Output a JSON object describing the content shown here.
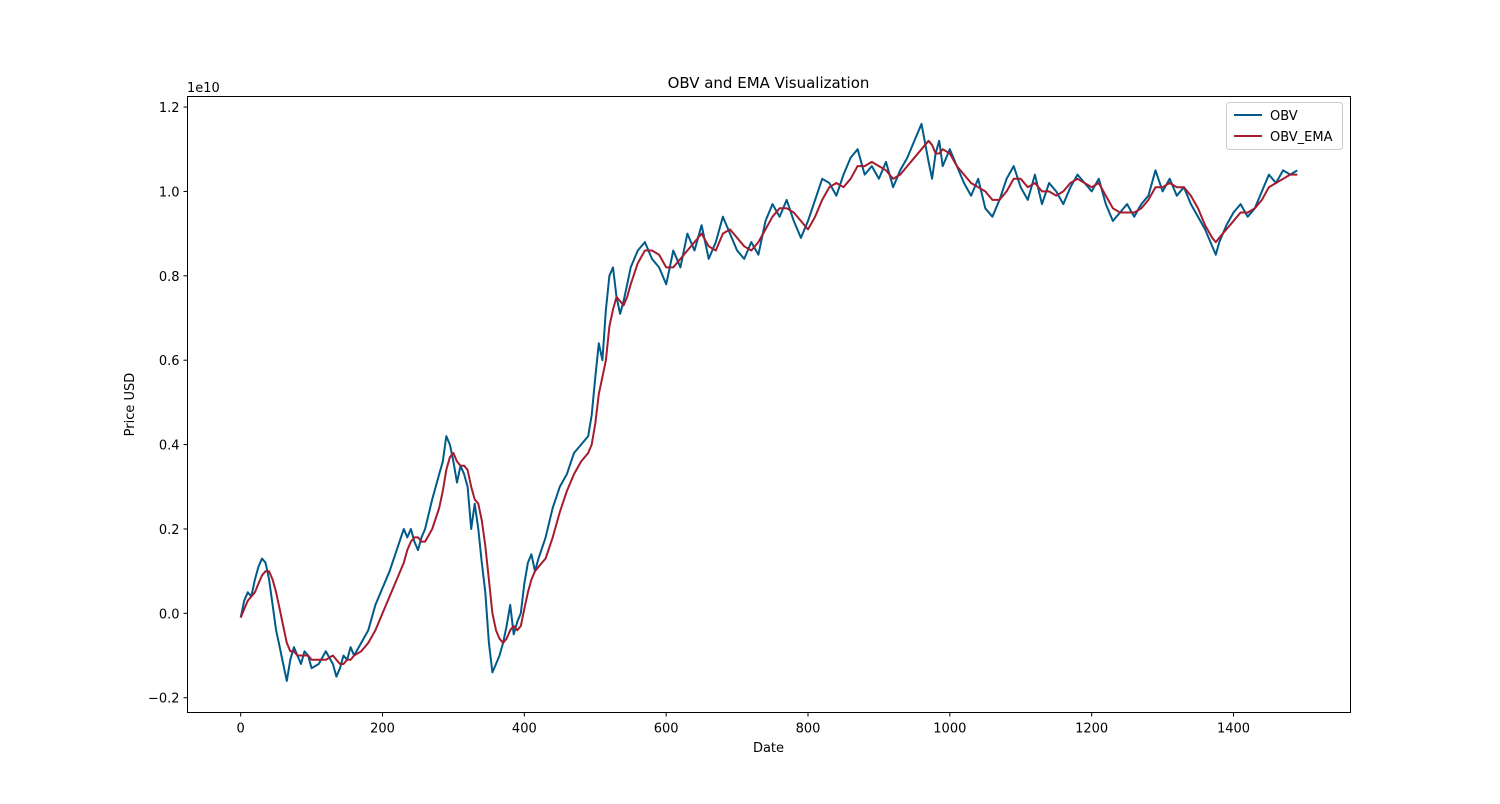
{
  "chart_data": {
    "type": "line",
    "title": "OBV and EMA Visualization",
    "xlabel": "Date",
    "ylabel": "Price USD",
    "y_scale_label": "1e10",
    "xlim": [
      -75,
      1565
    ],
    "ylim": [
      -0.235,
      1.225
    ],
    "x_ticks": [
      0,
      200,
      400,
      600,
      800,
      1000,
      1200,
      1400
    ],
    "y_ticks": [
      -0.2,
      0.0,
      0.2,
      0.4,
      0.6,
      0.8,
      1.0,
      1.2
    ],
    "x_tick_labels": [
      "0",
      "200",
      "400",
      "600",
      "800",
      "1000",
      "1200",
      "1400"
    ],
    "y_tick_labels": [
      "−0.2",
      "0.0",
      "0.2",
      "0.4",
      "0.6",
      "0.8",
      "1.0",
      "1.2"
    ],
    "grid": false,
    "legend_position": "top-right",
    "series": [
      {
        "name": "OBV",
        "color": "#005b8a",
        "x": [
          0,
          5,
          10,
          15,
          20,
          25,
          30,
          35,
          40,
          45,
          50,
          55,
          60,
          65,
          70,
          75,
          80,
          85,
          90,
          95,
          100,
          110,
          120,
          130,
          135,
          140,
          145,
          150,
          155,
          160,
          170,
          180,
          190,
          200,
          210,
          220,
          230,
          235,
          240,
          245,
          250,
          255,
          260,
          270,
          280,
          285,
          290,
          295,
          300,
          305,
          310,
          315,
          320,
          325,
          330,
          335,
          340,
          345,
          350,
          355,
          360,
          365,
          370,
          375,
          380,
          385,
          390,
          395,
          400,
          405,
          410,
          415,
          420,
          430,
          440,
          450,
          460,
          470,
          480,
          490,
          495,
          500,
          505,
          510,
          515,
          520,
          525,
          530,
          535,
          540,
          545,
          550,
          560,
          570,
          580,
          590,
          600,
          610,
          620,
          630,
          640,
          650,
          660,
          670,
          680,
          690,
          700,
          710,
          720,
          730,
          740,
          750,
          760,
          770,
          780,
          790,
          800,
          810,
          820,
          830,
          840,
          850,
          860,
          870,
          880,
          890,
          900,
          910,
          920,
          930,
          940,
          950,
          960,
          970,
          975,
          980,
          985,
          990,
          1000,
          1010,
          1020,
          1030,
          1040,
          1050,
          1060,
          1070,
          1080,
          1090,
          1100,
          1110,
          1120,
          1130,
          1140,
          1150,
          1160,
          1170,
          1180,
          1190,
          1200,
          1210,
          1220,
          1230,
          1240,
          1250,
          1260,
          1270,
          1280,
          1290,
          1300,
          1310,
          1320,
          1330,
          1340,
          1350,
          1360,
          1370,
          1375,
          1380,
          1390,
          1400,
          1410,
          1420,
          1430,
          1440,
          1450,
          1460,
          1470,
          1480,
          1490
        ],
        "values": [
          -0.01,
          0.03,
          0.05,
          0.04,
          0.08,
          0.11,
          0.13,
          0.12,
          0.08,
          0.02,
          -0.04,
          -0.08,
          -0.12,
          -0.16,
          -0.11,
          -0.08,
          -0.1,
          -0.12,
          -0.09,
          -0.1,
          -0.13,
          -0.12,
          -0.09,
          -0.12,
          -0.15,
          -0.13,
          -0.1,
          -0.11,
          -0.08,
          -0.1,
          -0.07,
          -0.04,
          0.02,
          0.06,
          0.1,
          0.15,
          0.2,
          0.18,
          0.2,
          0.17,
          0.15,
          0.18,
          0.2,
          0.27,
          0.33,
          0.36,
          0.42,
          0.4,
          0.36,
          0.31,
          0.35,
          0.33,
          0.3,
          0.2,
          0.26,
          0.2,
          0.12,
          0.05,
          -0.07,
          -0.14,
          -0.12,
          -0.1,
          -0.07,
          -0.03,
          0.02,
          -0.05,
          -0.02,
          0.0,
          0.07,
          0.12,
          0.14,
          0.1,
          0.13,
          0.18,
          0.25,
          0.3,
          0.33,
          0.38,
          0.4,
          0.42,
          0.47,
          0.56,
          0.64,
          0.6,
          0.72,
          0.8,
          0.82,
          0.75,
          0.71,
          0.74,
          0.78,
          0.82,
          0.86,
          0.88,
          0.84,
          0.82,
          0.78,
          0.86,
          0.82,
          0.9,
          0.86,
          0.92,
          0.84,
          0.88,
          0.94,
          0.9,
          0.86,
          0.84,
          0.88,
          0.85,
          0.93,
          0.97,
          0.94,
          0.98,
          0.93,
          0.89,
          0.93,
          0.98,
          1.03,
          1.02,
          0.99,
          1.04,
          1.08,
          1.1,
          1.04,
          1.06,
          1.03,
          1.07,
          1.01,
          1.05,
          1.08,
          1.12,
          1.16,
          1.07,
          1.03,
          1.09,
          1.12,
          1.06,
          1.1,
          1.06,
          1.02,
          0.99,
          1.03,
          0.96,
          0.94,
          0.98,
          1.03,
          1.06,
          1.01,
          0.98,
          1.04,
          0.97,
          1.02,
          1.0,
          0.97,
          1.01,
          1.04,
          1.02,
          1.0,
          1.03,
          0.97,
          0.93,
          0.95,
          0.97,
          0.94,
          0.97,
          0.99,
          1.05,
          1.0,
          1.03,
          0.99,
          1.01,
          0.97,
          0.94,
          0.91,
          0.87,
          0.85,
          0.88,
          0.92,
          0.95,
          0.97,
          0.94,
          0.96,
          1.0,
          1.04,
          1.02,
          1.05,
          1.04,
          1.05
        ]
      },
      {
        "name": "OBV_EMA",
        "color": "#a51c30",
        "x": [
          0,
          5,
          10,
          15,
          20,
          25,
          30,
          35,
          40,
          45,
          50,
          55,
          60,
          65,
          70,
          75,
          80,
          85,
          90,
          95,
          100,
          110,
          120,
          130,
          135,
          140,
          145,
          150,
          155,
          160,
          170,
          180,
          190,
          200,
          210,
          220,
          230,
          235,
          240,
          245,
          250,
          255,
          260,
          270,
          280,
          285,
          290,
          295,
          300,
          305,
          310,
          315,
          320,
          325,
          330,
          335,
          340,
          345,
          350,
          355,
          360,
          365,
          370,
          375,
          380,
          385,
          390,
          395,
          400,
          405,
          410,
          415,
          420,
          430,
          440,
          450,
          460,
          470,
          480,
          490,
          495,
          500,
          505,
          510,
          515,
          520,
          525,
          530,
          535,
          540,
          545,
          550,
          560,
          570,
          580,
          590,
          600,
          610,
          620,
          630,
          640,
          650,
          660,
          670,
          680,
          690,
          700,
          710,
          720,
          730,
          740,
          750,
          760,
          770,
          780,
          790,
          800,
          810,
          820,
          830,
          840,
          850,
          860,
          870,
          880,
          890,
          900,
          910,
          920,
          930,
          940,
          950,
          960,
          970,
          975,
          980,
          985,
          990,
          1000,
          1010,
          1020,
          1030,
          1040,
          1050,
          1060,
          1070,
          1080,
          1090,
          1100,
          1110,
          1120,
          1130,
          1140,
          1150,
          1160,
          1170,
          1180,
          1190,
          1200,
          1210,
          1220,
          1230,
          1240,
          1250,
          1260,
          1270,
          1280,
          1290,
          1300,
          1310,
          1320,
          1330,
          1340,
          1350,
          1360,
          1370,
          1375,
          1380,
          1390,
          1400,
          1410,
          1420,
          1430,
          1440,
          1450,
          1460,
          1470,
          1480,
          1490
        ],
        "values": [
          -0.01,
          0.01,
          0.03,
          0.04,
          0.05,
          0.07,
          0.09,
          0.1,
          0.1,
          0.08,
          0.05,
          0.01,
          -0.03,
          -0.07,
          -0.09,
          -0.09,
          -0.1,
          -0.1,
          -0.1,
          -0.1,
          -0.11,
          -0.11,
          -0.11,
          -0.1,
          -0.11,
          -0.12,
          -0.12,
          -0.11,
          -0.11,
          -0.1,
          -0.09,
          -0.07,
          -0.04,
          0.0,
          0.04,
          0.08,
          0.12,
          0.15,
          0.17,
          0.18,
          0.18,
          0.17,
          0.17,
          0.2,
          0.25,
          0.29,
          0.34,
          0.37,
          0.38,
          0.36,
          0.35,
          0.35,
          0.34,
          0.3,
          0.27,
          0.26,
          0.22,
          0.16,
          0.08,
          0.0,
          -0.04,
          -0.06,
          -0.07,
          -0.06,
          -0.04,
          -0.03,
          -0.04,
          -0.03,
          0.01,
          0.05,
          0.08,
          0.1,
          0.11,
          0.13,
          0.18,
          0.24,
          0.29,
          0.33,
          0.36,
          0.38,
          0.4,
          0.45,
          0.52,
          0.56,
          0.6,
          0.68,
          0.72,
          0.75,
          0.74,
          0.73,
          0.75,
          0.78,
          0.83,
          0.86,
          0.86,
          0.85,
          0.82,
          0.82,
          0.84,
          0.86,
          0.88,
          0.9,
          0.87,
          0.86,
          0.9,
          0.91,
          0.89,
          0.87,
          0.86,
          0.88,
          0.91,
          0.94,
          0.96,
          0.96,
          0.95,
          0.93,
          0.91,
          0.94,
          0.98,
          1.01,
          1.02,
          1.01,
          1.03,
          1.06,
          1.06,
          1.07,
          1.06,
          1.05,
          1.03,
          1.04,
          1.06,
          1.08,
          1.1,
          1.12,
          1.11,
          1.09,
          1.09,
          1.1,
          1.09,
          1.06,
          1.04,
          1.02,
          1.01,
          1.0,
          0.98,
          0.98,
          1.0,
          1.03,
          1.03,
          1.01,
          1.02,
          1.0,
          1.0,
          0.99,
          1.0,
          1.02,
          1.03,
          1.02,
          1.01,
          1.02,
          0.99,
          0.96,
          0.95,
          0.95,
          0.95,
          0.96,
          0.98,
          1.01,
          1.01,
          1.02,
          1.01,
          1.01,
          0.99,
          0.96,
          0.92,
          0.89,
          0.88,
          0.89,
          0.91,
          0.93,
          0.95,
          0.95,
          0.96,
          0.98,
          1.01,
          1.02,
          1.03,
          1.04,
          1.04
        ]
      }
    ]
  }
}
